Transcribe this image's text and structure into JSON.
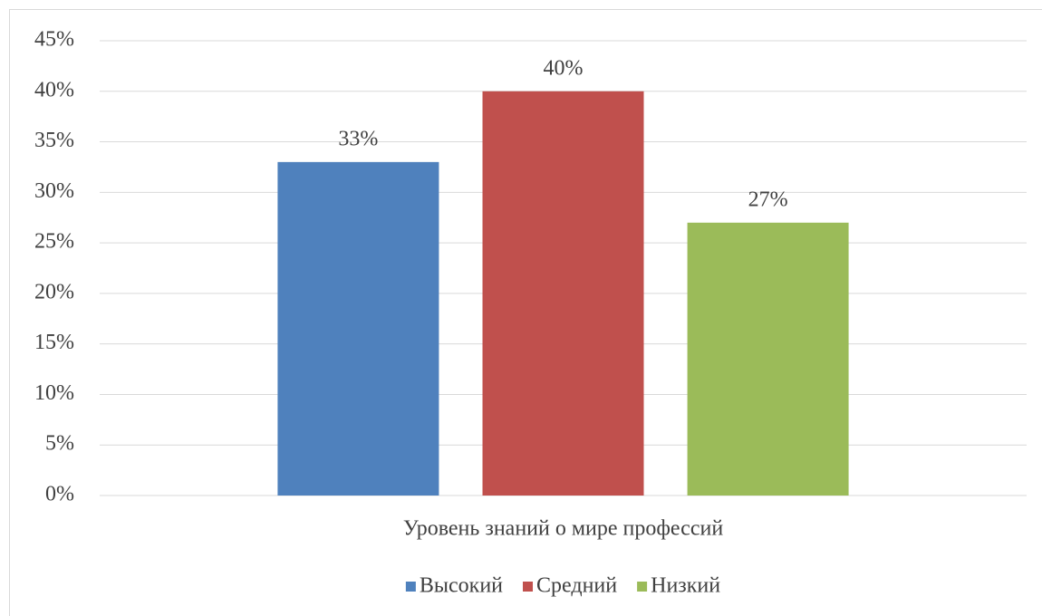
{
  "chart_data": {
    "type": "bar",
    "categories": [
      "Уровень знаний о мире профессий"
    ],
    "series": [
      {
        "name": "Высокий",
        "color": "#4f81bd",
        "values": [
          33
        ],
        "value_labels": [
          "33%"
        ]
      },
      {
        "name": "Средний",
        "color": "#c0504d",
        "values": [
          40
        ],
        "value_labels": [
          "40%"
        ]
      },
      {
        "name": "Низкий",
        "color": "#9bbb59",
        "values": [
          27
        ],
        "value_labels": [
          "27%"
        ]
      }
    ],
    "ylim": [
      0,
      45
    ],
    "yticks": [
      {
        "value": 0,
        "label": "0%"
      },
      {
        "value": 5,
        "label": "5%"
      },
      {
        "value": 10,
        "label": "10%"
      },
      {
        "value": 15,
        "label": "15%"
      },
      {
        "value": 20,
        "label": "20%"
      },
      {
        "value": 25,
        "label": "25%"
      },
      {
        "value": 30,
        "label": "30%"
      },
      {
        "value": 35,
        "label": "35%"
      },
      {
        "value": 40,
        "label": "40%"
      },
      {
        "value": 45,
        "label": "45%"
      }
    ],
    "grid": true,
    "legend": "bottom"
  }
}
